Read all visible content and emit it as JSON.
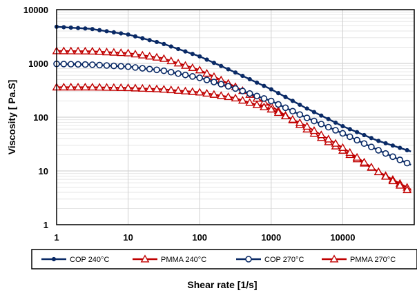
{
  "chart_data": {
    "type": "line",
    "xlabel": "Shear rate [1/s]",
    "ylabel": "Viscosity [ Pa.S]",
    "x_scale": "log",
    "y_scale": "log",
    "xlim": [
      1,
      100000
    ],
    "ylim": [
      1,
      10000
    ],
    "x_ticks": [
      "1",
      "10",
      "100",
      "1000",
      "10000"
    ],
    "y_ticks": [
      "1",
      "10",
      "100",
      "1000",
      "10000"
    ],
    "grid": "major and minor",
    "legend_position": "bottom",
    "series": [
      {
        "name": "COP 240°C",
        "color": "#0a2a66",
        "marker": "dot",
        "x": [
          1,
          3,
          10,
          30,
          100,
          300,
          1000,
          3000,
          10000,
          30000,
          90000
        ],
        "y": [
          4800,
          4400,
          3450,
          2350,
          1350,
          700,
          330,
          150,
          68,
          37,
          23
        ]
      },
      {
        "name": "PMMA 240°C",
        "color": "#c00000",
        "marker": "triangle",
        "x": [
          1,
          3,
          10,
          30,
          100,
          300,
          1000,
          3000,
          10000,
          30000,
          90000
        ],
        "y": [
          1700,
          1680,
          1550,
          1250,
          750,
          380,
          160,
          62,
          24,
          10,
          4.5
        ]
      },
      {
        "name": "COP 270°C",
        "color": "#0a2a66",
        "marker": "circle",
        "x": [
          1,
          3,
          10,
          30,
          100,
          300,
          1000,
          3000,
          10000,
          30000,
          90000
        ],
        "y": [
          980,
          950,
          870,
          740,
          540,
          350,
          200,
          100,
          50,
          25,
          13
        ]
      },
      {
        "name": "PMMA 270°C",
        "color": "#c00000",
        "marker": "triangle",
        "x": [
          1,
          3,
          10,
          30,
          100,
          300,
          1000,
          3000,
          10000,
          30000,
          90000
        ],
        "y": [
          360,
          360,
          350,
          330,
          290,
          230,
          140,
          70,
          27,
          10,
          4
        ]
      }
    ]
  }
}
